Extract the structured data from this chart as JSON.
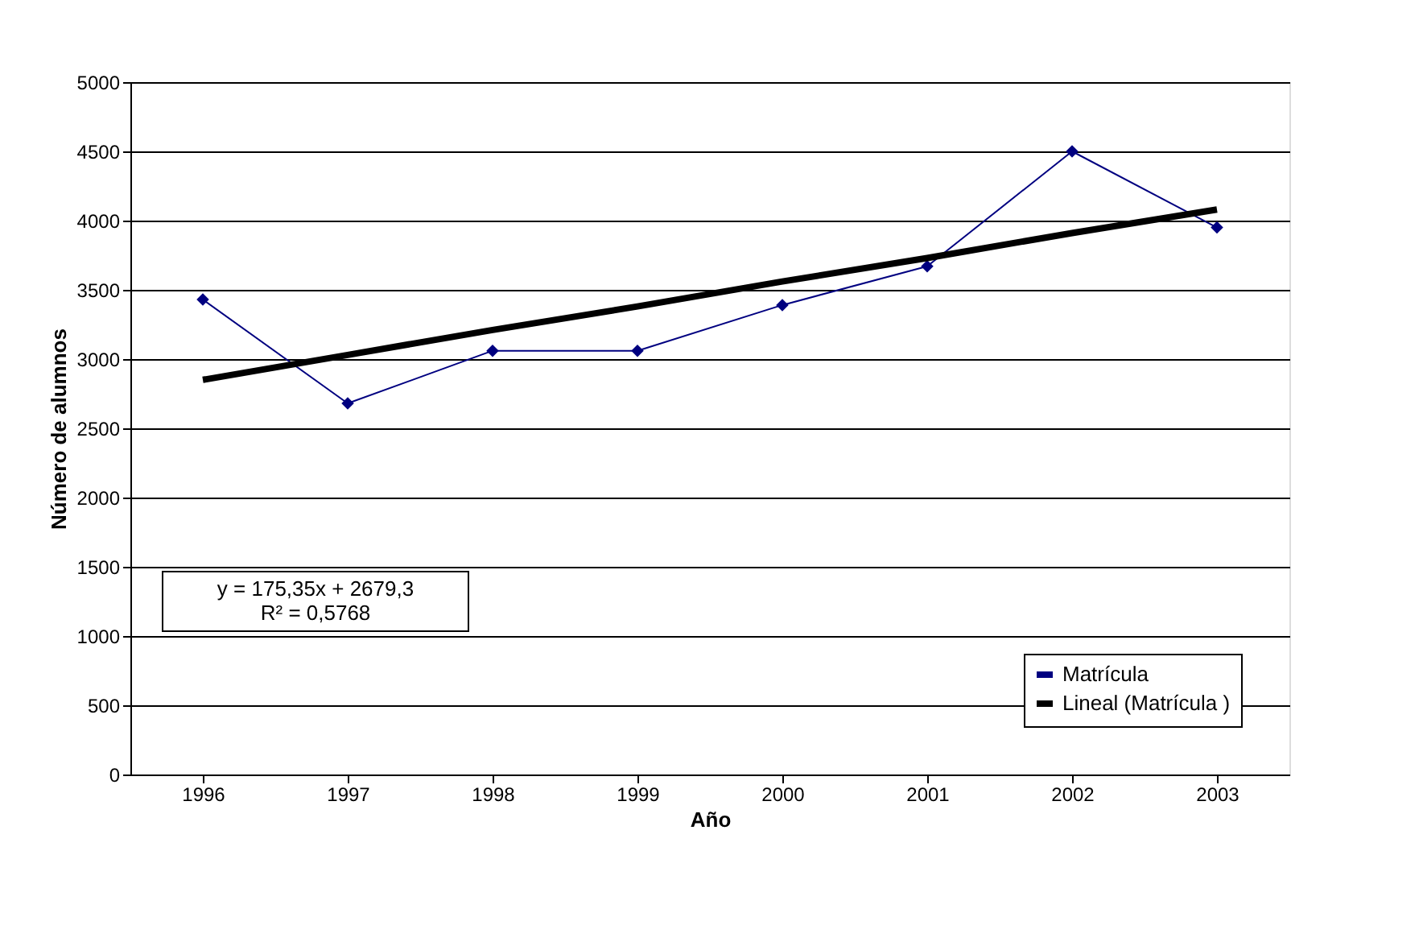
{
  "chart_data": {
    "type": "line",
    "xlabel": "Año",
    "ylabel": "Número de alumnos",
    "categories": [
      "1996",
      "1997",
      "1998",
      "1999",
      "2000",
      "2001",
      "2002",
      "2003"
    ],
    "series": [
      {
        "name": "Matrícula",
        "color": "#000080",
        "values": [
          3430,
          2680,
          3060,
          3060,
          3390,
          3670,
          4500,
          3950
        ],
        "marker": "diamond"
      },
      {
        "name": "Lineal (Matrícula )",
        "type": "line",
        "color": "#000000",
        "values": [
          2850,
          3030,
          3210,
          3380,
          3560,
          3730,
          3910,
          4080
        ],
        "marker": "none"
      }
    ],
    "ylim": [
      0,
      5000
    ],
    "yticks": [
      0,
      500,
      1000,
      1500,
      2000,
      2500,
      3000,
      3500,
      4000,
      4500,
      5000
    ],
    "grid": "y",
    "legend": "bottom right",
    "annotations": [
      "y = 175,35x + 2679,3",
      "R² = 0,5768"
    ]
  }
}
